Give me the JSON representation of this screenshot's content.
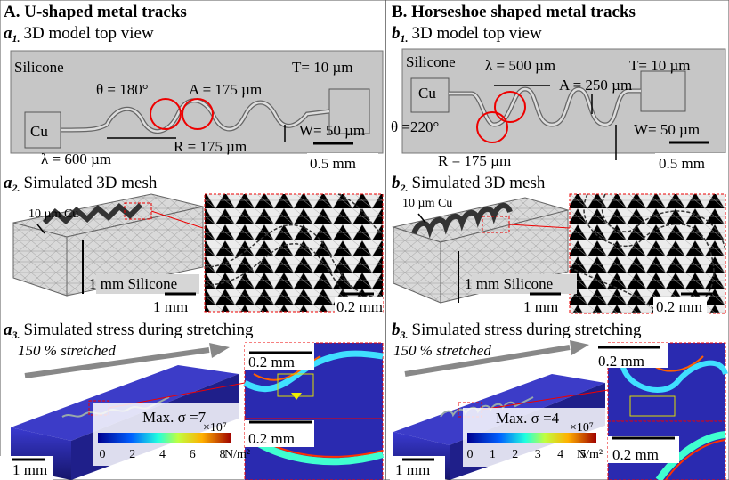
{
  "panels": [
    {
      "title": "A. U-shaped metal tracks",
      "top_view": {
        "letter": "a",
        "index": "1.",
        "title": "3D model top view",
        "labels": [
          "Silicone",
          "Cu",
          "θ = 180°",
          "A = 175 µm",
          "T= 10 µm",
          "W= 50 µm",
          "R = 175 µm",
          "λ = 600 µm"
        ],
        "scale": "0.5 mm"
      },
      "mesh": {
        "letter": "a",
        "index": "2.",
        "title": "Simulated 3D mesh",
        "labels": [
          "10 µm Cu",
          "1 mm Silicone"
        ],
        "scales": [
          "1 mm",
          "0.2 mm"
        ]
      },
      "stress": {
        "letter": "a",
        "index": "3.",
        "title": "Simulated stress during stretching",
        "stretch": "150 % stretched",
        "scales": [
          "0.2 mm",
          "0.2 mm",
          "1 mm"
        ],
        "max": "Max. σ =7",
        "colorbar": {
          "ticks": [
            "0",
            "2",
            "4",
            "6",
            "8"
          ],
          "multiplier": "×10⁷",
          "unit": "N/m²"
        }
      }
    },
    {
      "title": "B. Horseshoe shaped metal tracks",
      "top_view": {
        "letter": "b",
        "index": "1.",
        "title": "3D model top view",
        "labels": [
          "Silicone",
          "Cu",
          "θ =220°",
          "A = 250 µm",
          "T= 10 µm",
          "W= 50 µm",
          "R = 175 µm",
          "λ = 500 µm"
        ],
        "scale": "0.5 mm"
      },
      "mesh": {
        "letter": "b",
        "index": "2.",
        "title": "Simulated 3D mesh",
        "labels": [
          "10 µm Cu",
          "1 mm Silicone"
        ],
        "scales": [
          "1 mm",
          "0.2 mm"
        ]
      },
      "stress": {
        "letter": "b",
        "index": "3.",
        "title": "Simulated stress during stretching",
        "stretch": "150 % stretched",
        "scales": [
          "0.2 mm",
          "0.2 mm",
          "1 mm"
        ],
        "max": "Max. σ =4",
        "colorbar": {
          "ticks": [
            "0",
            "1",
            "2",
            "3",
            "4",
            "5"
          ],
          "multiplier": "×10⁷",
          "unit": "N/m²"
        }
      }
    }
  ]
}
